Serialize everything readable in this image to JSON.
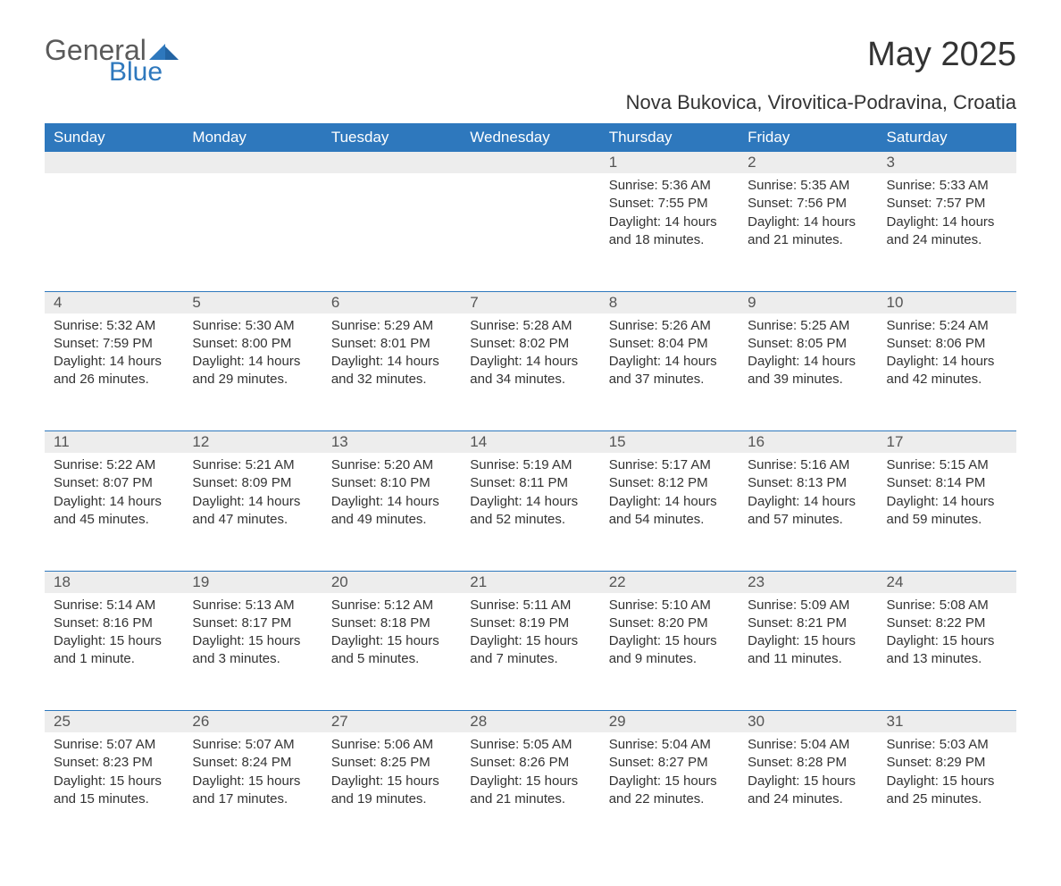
{
  "brand": {
    "general": "General",
    "blue": "Blue"
  },
  "title": "May 2025",
  "subtitle": "Nova Bukovica, Virovitica-Podravina, Croatia",
  "colors": {
    "header_bg": "#2e78bd",
    "header_text": "#ffffff",
    "daynum_bg": "#ededed",
    "border": "#2e78bd",
    "body_text": "#333333",
    "logo_gray": "#5a5a5a",
    "logo_blue": "#2e78bd",
    "page_bg": "#ffffff"
  },
  "weekdays": [
    "Sunday",
    "Monday",
    "Tuesday",
    "Wednesday",
    "Thursday",
    "Friday",
    "Saturday"
  ],
  "weeks": [
    [
      null,
      null,
      null,
      null,
      {
        "n": "1",
        "sr": "Sunrise: 5:36 AM",
        "ss": "Sunset: 7:55 PM",
        "dl": "Daylight: 14 hours and 18 minutes."
      },
      {
        "n": "2",
        "sr": "Sunrise: 5:35 AM",
        "ss": "Sunset: 7:56 PM",
        "dl": "Daylight: 14 hours and 21 minutes."
      },
      {
        "n": "3",
        "sr": "Sunrise: 5:33 AM",
        "ss": "Sunset: 7:57 PM",
        "dl": "Daylight: 14 hours and 24 minutes."
      }
    ],
    [
      {
        "n": "4",
        "sr": "Sunrise: 5:32 AM",
        "ss": "Sunset: 7:59 PM",
        "dl": "Daylight: 14 hours and 26 minutes."
      },
      {
        "n": "5",
        "sr": "Sunrise: 5:30 AM",
        "ss": "Sunset: 8:00 PM",
        "dl": "Daylight: 14 hours and 29 minutes."
      },
      {
        "n": "6",
        "sr": "Sunrise: 5:29 AM",
        "ss": "Sunset: 8:01 PM",
        "dl": "Daylight: 14 hours and 32 minutes."
      },
      {
        "n": "7",
        "sr": "Sunrise: 5:28 AM",
        "ss": "Sunset: 8:02 PM",
        "dl": "Daylight: 14 hours and 34 minutes."
      },
      {
        "n": "8",
        "sr": "Sunrise: 5:26 AM",
        "ss": "Sunset: 8:04 PM",
        "dl": "Daylight: 14 hours and 37 minutes."
      },
      {
        "n": "9",
        "sr": "Sunrise: 5:25 AM",
        "ss": "Sunset: 8:05 PM",
        "dl": "Daylight: 14 hours and 39 minutes."
      },
      {
        "n": "10",
        "sr": "Sunrise: 5:24 AM",
        "ss": "Sunset: 8:06 PM",
        "dl": "Daylight: 14 hours and 42 minutes."
      }
    ],
    [
      {
        "n": "11",
        "sr": "Sunrise: 5:22 AM",
        "ss": "Sunset: 8:07 PM",
        "dl": "Daylight: 14 hours and 45 minutes."
      },
      {
        "n": "12",
        "sr": "Sunrise: 5:21 AM",
        "ss": "Sunset: 8:09 PM",
        "dl": "Daylight: 14 hours and 47 minutes."
      },
      {
        "n": "13",
        "sr": "Sunrise: 5:20 AM",
        "ss": "Sunset: 8:10 PM",
        "dl": "Daylight: 14 hours and 49 minutes."
      },
      {
        "n": "14",
        "sr": "Sunrise: 5:19 AM",
        "ss": "Sunset: 8:11 PM",
        "dl": "Daylight: 14 hours and 52 minutes."
      },
      {
        "n": "15",
        "sr": "Sunrise: 5:17 AM",
        "ss": "Sunset: 8:12 PM",
        "dl": "Daylight: 14 hours and 54 minutes."
      },
      {
        "n": "16",
        "sr": "Sunrise: 5:16 AM",
        "ss": "Sunset: 8:13 PM",
        "dl": "Daylight: 14 hours and 57 minutes."
      },
      {
        "n": "17",
        "sr": "Sunrise: 5:15 AM",
        "ss": "Sunset: 8:14 PM",
        "dl": "Daylight: 14 hours and 59 minutes."
      }
    ],
    [
      {
        "n": "18",
        "sr": "Sunrise: 5:14 AM",
        "ss": "Sunset: 8:16 PM",
        "dl": "Daylight: 15 hours and 1 minute."
      },
      {
        "n": "19",
        "sr": "Sunrise: 5:13 AM",
        "ss": "Sunset: 8:17 PM",
        "dl": "Daylight: 15 hours and 3 minutes."
      },
      {
        "n": "20",
        "sr": "Sunrise: 5:12 AM",
        "ss": "Sunset: 8:18 PM",
        "dl": "Daylight: 15 hours and 5 minutes."
      },
      {
        "n": "21",
        "sr": "Sunrise: 5:11 AM",
        "ss": "Sunset: 8:19 PM",
        "dl": "Daylight: 15 hours and 7 minutes."
      },
      {
        "n": "22",
        "sr": "Sunrise: 5:10 AM",
        "ss": "Sunset: 8:20 PM",
        "dl": "Daylight: 15 hours and 9 minutes."
      },
      {
        "n": "23",
        "sr": "Sunrise: 5:09 AM",
        "ss": "Sunset: 8:21 PM",
        "dl": "Daylight: 15 hours and 11 minutes."
      },
      {
        "n": "24",
        "sr": "Sunrise: 5:08 AM",
        "ss": "Sunset: 8:22 PM",
        "dl": "Daylight: 15 hours and 13 minutes."
      }
    ],
    [
      {
        "n": "25",
        "sr": "Sunrise: 5:07 AM",
        "ss": "Sunset: 8:23 PM",
        "dl": "Daylight: 15 hours and 15 minutes."
      },
      {
        "n": "26",
        "sr": "Sunrise: 5:07 AM",
        "ss": "Sunset: 8:24 PM",
        "dl": "Daylight: 15 hours and 17 minutes."
      },
      {
        "n": "27",
        "sr": "Sunrise: 5:06 AM",
        "ss": "Sunset: 8:25 PM",
        "dl": "Daylight: 15 hours and 19 minutes."
      },
      {
        "n": "28",
        "sr": "Sunrise: 5:05 AM",
        "ss": "Sunset: 8:26 PM",
        "dl": "Daylight: 15 hours and 21 minutes."
      },
      {
        "n": "29",
        "sr": "Sunrise: 5:04 AM",
        "ss": "Sunset: 8:27 PM",
        "dl": "Daylight: 15 hours and 22 minutes."
      },
      {
        "n": "30",
        "sr": "Sunrise: 5:04 AM",
        "ss": "Sunset: 8:28 PM",
        "dl": "Daylight: 15 hours and 24 minutes."
      },
      {
        "n": "31",
        "sr": "Sunrise: 5:03 AM",
        "ss": "Sunset: 8:29 PM",
        "dl": "Daylight: 15 hours and 25 minutes."
      }
    ]
  ]
}
